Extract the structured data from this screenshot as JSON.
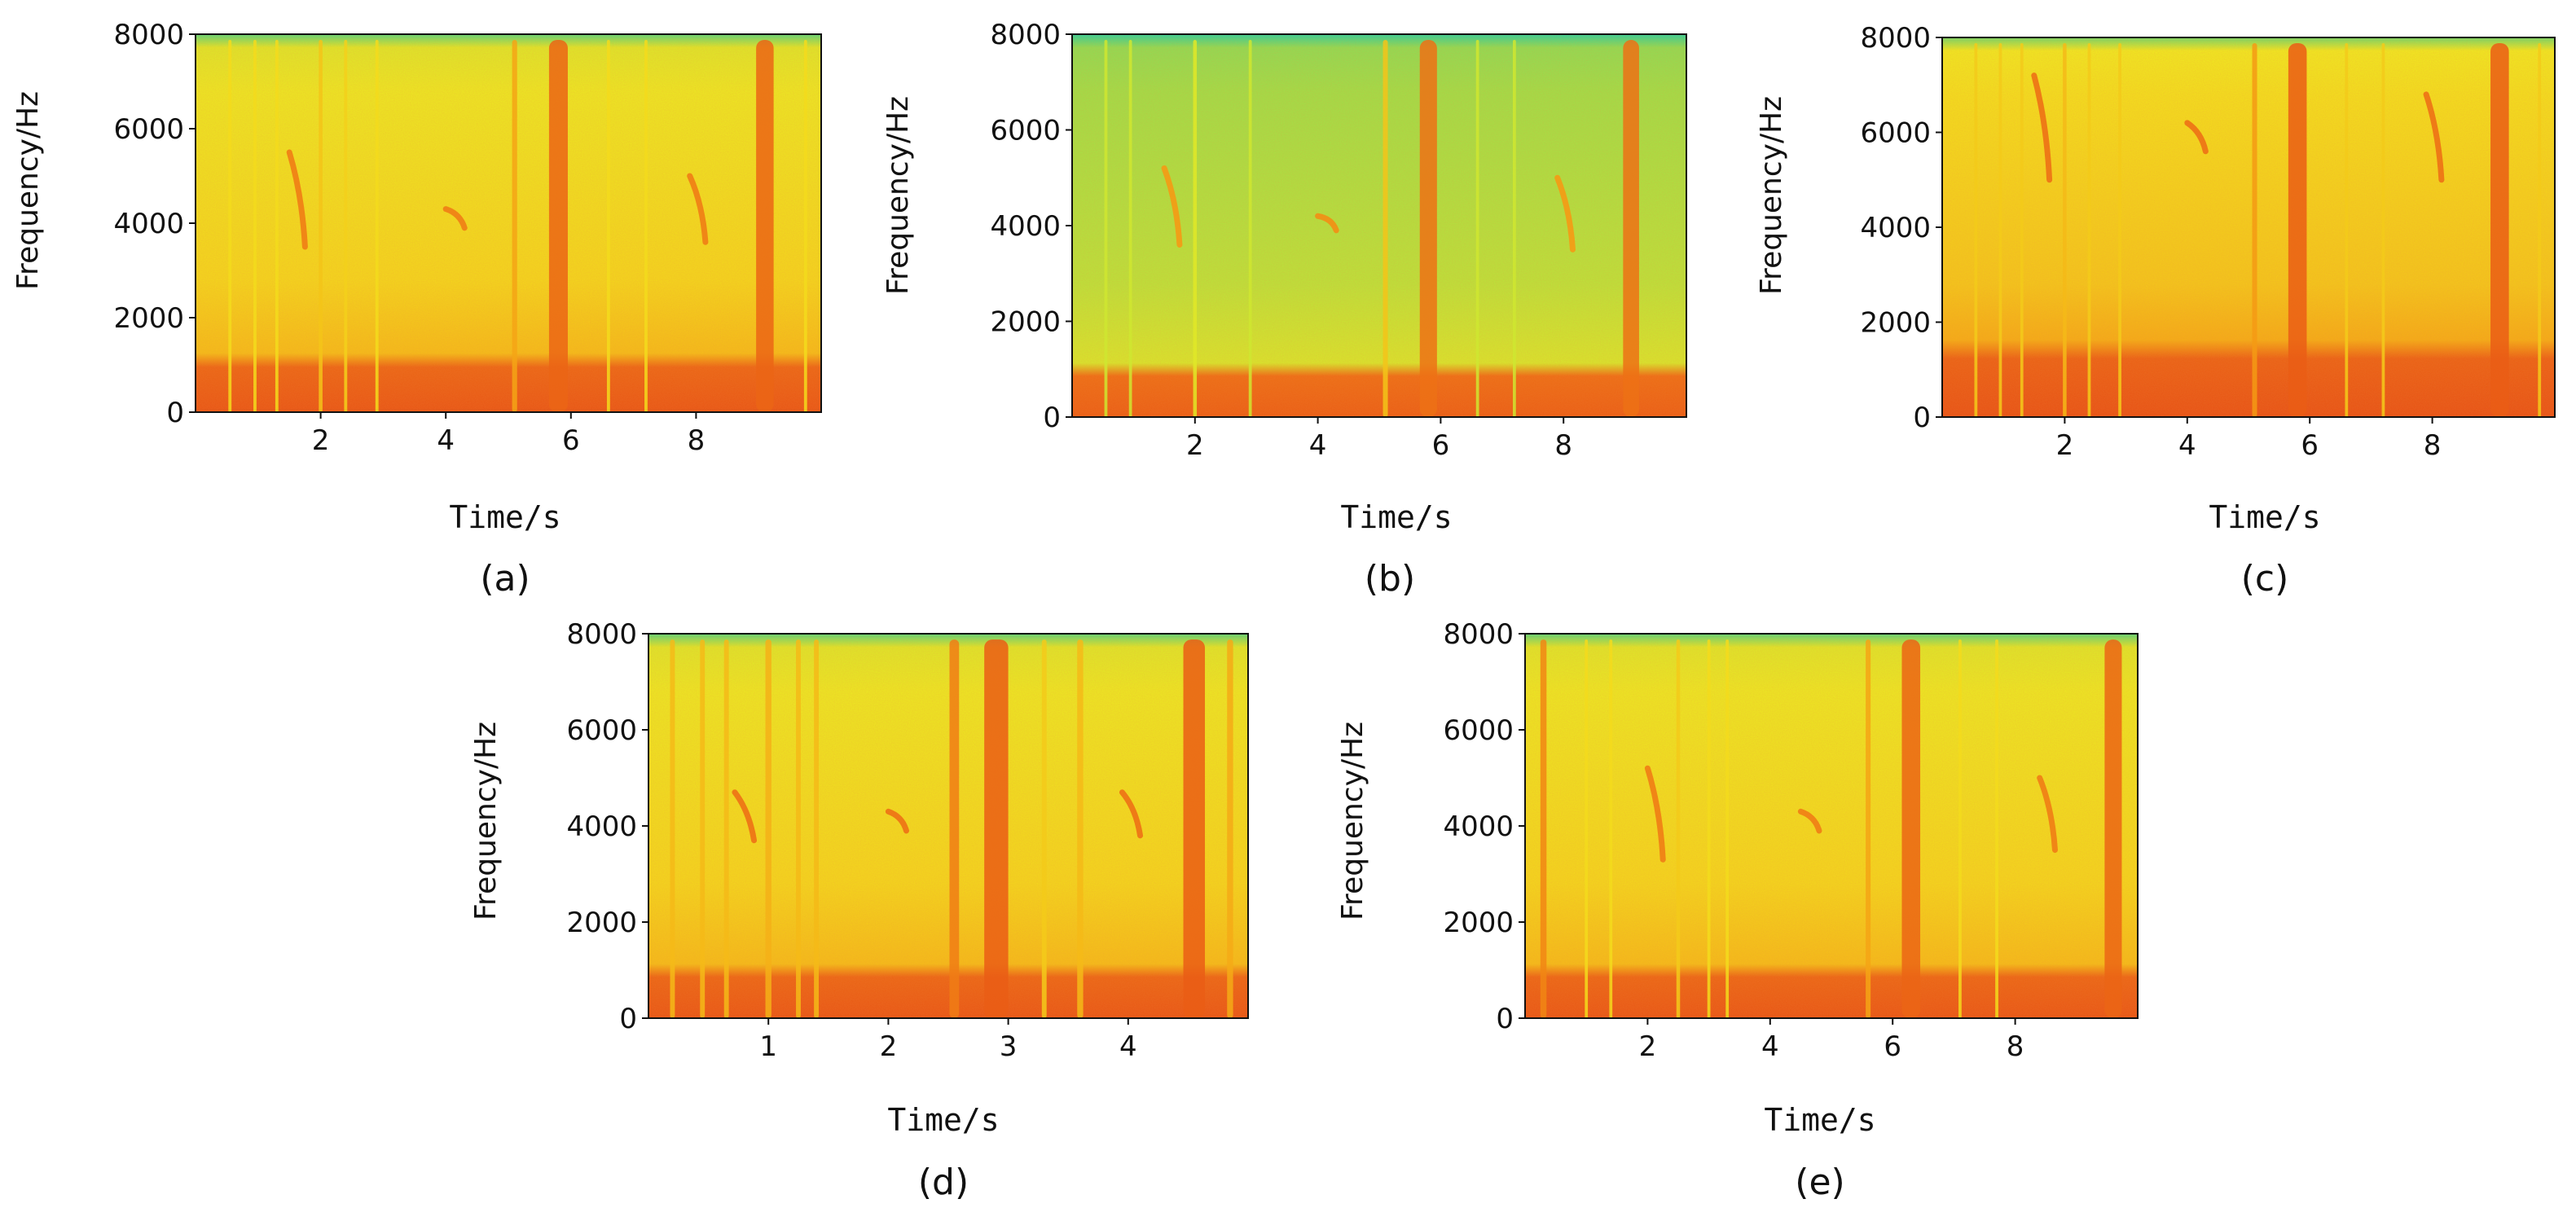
{
  "chart_data": [
    {
      "type": "heatmap",
      "subtype": "spectrogram",
      "panel_label": "(a)",
      "xlabel": "Time/s",
      "ylabel": "Frequency/Hz",
      "xlim": [
        0,
        10
      ],
      "ylim": [
        0,
        8000
      ],
      "xticks": [
        2,
        4,
        6,
        8
      ],
      "yticks": [
        0,
        2000,
        4000,
        6000,
        8000
      ],
      "colormap": [
        "#2ad39e",
        "#9be04a",
        "#f2ea1e",
        "#f59a14",
        "#e23416"
      ],
      "background_intensity": 0.5,
      "low_band": {
        "fmax": 1000,
        "intensity": 0.92
      },
      "broadband_events": [
        {
          "t": 0.55,
          "width": 0.05,
          "intensity": 0.55
        },
        {
          "t": 0.95,
          "width": 0.05,
          "intensity": 0.55
        },
        {
          "t": 1.3,
          "width": 0.05,
          "intensity": 0.55
        },
        {
          "t": 2.0,
          "width": 0.06,
          "intensity": 0.62
        },
        {
          "t": 2.4,
          "width": 0.05,
          "intensity": 0.58
        },
        {
          "t": 2.9,
          "width": 0.05,
          "intensity": 0.55
        },
        {
          "t": 5.1,
          "width": 0.08,
          "intensity": 0.72
        },
        {
          "t": 5.8,
          "width": 0.3,
          "intensity": 0.88
        },
        {
          "t": 6.6,
          "width": 0.05,
          "intensity": 0.55
        },
        {
          "t": 7.2,
          "width": 0.05,
          "intensity": 0.55
        },
        {
          "t": 9.1,
          "width": 0.28,
          "intensity": 0.88
        },
        {
          "t": 9.75,
          "width": 0.05,
          "intensity": 0.55
        }
      ],
      "chirps": [
        {
          "t0": 1.5,
          "t1": 1.75,
          "f0": 5500,
          "f1": 3500,
          "intensity": 0.82
        },
        {
          "t0": 4.0,
          "t1": 4.3,
          "f0": 4300,
          "f1": 3900,
          "intensity": 0.82
        },
        {
          "t0": 7.9,
          "t1": 8.15,
          "f0": 5000,
          "f1": 3600,
          "intensity": 0.82
        }
      ]
    },
    {
      "type": "heatmap",
      "subtype": "spectrogram",
      "panel_label": "(b)",
      "xlabel": "Time/s",
      "ylabel": "Frequency/Hz",
      "xlim": [
        0,
        10
      ],
      "ylim": [
        0,
        8000
      ],
      "xticks": [
        2,
        4,
        6,
        8
      ],
      "yticks": [
        0,
        2000,
        4000,
        6000,
        8000
      ],
      "colormap": [
        "#2ad39e",
        "#9be04a",
        "#f2ea1e",
        "#f59a14",
        "#e23416"
      ],
      "background_intensity": 0.28,
      "low_band": {
        "fmax": 900,
        "intensity": 0.9
      },
      "broadband_events": [
        {
          "t": 0.55,
          "width": 0.05,
          "intensity": 0.4
        },
        {
          "t": 0.95,
          "width": 0.05,
          "intensity": 0.4
        },
        {
          "t": 2.0,
          "width": 0.06,
          "intensity": 0.45
        },
        {
          "t": 2.9,
          "width": 0.05,
          "intensity": 0.4
        },
        {
          "t": 5.1,
          "width": 0.08,
          "intensity": 0.62
        },
        {
          "t": 5.8,
          "width": 0.28,
          "intensity": 0.85
        },
        {
          "t": 6.6,
          "width": 0.05,
          "intensity": 0.4
        },
        {
          "t": 7.2,
          "width": 0.05,
          "intensity": 0.4
        },
        {
          "t": 9.1,
          "width": 0.26,
          "intensity": 0.85
        }
      ],
      "chirps": [
        {
          "t0": 1.5,
          "t1": 1.75,
          "f0": 5200,
          "f1": 3600,
          "intensity": 0.75
        },
        {
          "t0": 4.0,
          "t1": 4.3,
          "f0": 4200,
          "f1": 3900,
          "intensity": 0.78
        },
        {
          "t0": 7.9,
          "t1": 8.15,
          "f0": 5000,
          "f1": 3500,
          "intensity": 0.75
        }
      ]
    },
    {
      "type": "heatmap",
      "subtype": "spectrogram",
      "panel_label": "(c)",
      "xlabel": "Time/s",
      "ylabel": "Frequency/Hz",
      "xlim": [
        0,
        10
      ],
      "ylim": [
        0,
        8000
      ],
      "xticks": [
        2,
        4,
        6,
        8
      ],
      "yticks": [
        0,
        2000,
        4000,
        6000,
        8000
      ],
      "colormap": [
        "#2ad39e",
        "#9be04a",
        "#f2ea1e",
        "#f59a14",
        "#e23416"
      ],
      "background_intensity": 0.55,
      "low_band": {
        "fmax": 1300,
        "intensity": 0.93
      },
      "broadband_events": [
        {
          "t": 0.55,
          "width": 0.05,
          "intensity": 0.6
        },
        {
          "t": 0.95,
          "width": 0.05,
          "intensity": 0.6
        },
        {
          "t": 1.3,
          "width": 0.05,
          "intensity": 0.6
        },
        {
          "t": 2.0,
          "width": 0.06,
          "intensity": 0.65
        },
        {
          "t": 2.4,
          "width": 0.05,
          "intensity": 0.6
        },
        {
          "t": 2.9,
          "width": 0.05,
          "intensity": 0.6
        },
        {
          "t": 5.1,
          "width": 0.08,
          "intensity": 0.75
        },
        {
          "t": 5.8,
          "width": 0.3,
          "intensity": 0.9
        },
        {
          "t": 6.6,
          "width": 0.05,
          "intensity": 0.6
        },
        {
          "t": 7.2,
          "width": 0.05,
          "intensity": 0.6
        },
        {
          "t": 9.1,
          "width": 0.3,
          "intensity": 0.9
        },
        {
          "t": 9.75,
          "width": 0.05,
          "intensity": 0.6
        }
      ],
      "chirps": [
        {
          "t0": 1.5,
          "t1": 1.75,
          "f0": 7200,
          "f1": 5000,
          "intensity": 0.85
        },
        {
          "t0": 4.0,
          "t1": 4.3,
          "f0": 6200,
          "f1": 5600,
          "intensity": 0.85
        },
        {
          "t0": 7.9,
          "t1": 8.15,
          "f0": 6800,
          "f1": 5000,
          "intensity": 0.85
        }
      ]
    },
    {
      "type": "heatmap",
      "subtype": "spectrogram",
      "panel_label": "(d)",
      "xlabel": "Time/s",
      "ylabel": "Frequency/Hz",
      "xlim": [
        0,
        5
      ],
      "ylim": [
        0,
        8000
      ],
      "xticks": [
        1,
        2,
        3,
        4
      ],
      "yticks": [
        0,
        2000,
        4000,
        6000,
        8000
      ],
      "colormap": [
        "#2ad39e",
        "#9be04a",
        "#f2ea1e",
        "#f59a14",
        "#e23416"
      ],
      "background_intensity": 0.5,
      "low_band": {
        "fmax": 900,
        "intensity": 0.92
      },
      "broadband_events": [
        {
          "t": 0.2,
          "width": 0.04,
          "intensity": 0.65
        },
        {
          "t": 0.45,
          "width": 0.04,
          "intensity": 0.65
        },
        {
          "t": 0.65,
          "width": 0.04,
          "intensity": 0.65
        },
        {
          "t": 1.0,
          "width": 0.05,
          "intensity": 0.68
        },
        {
          "t": 1.25,
          "width": 0.04,
          "intensity": 0.65
        },
        {
          "t": 1.4,
          "width": 0.04,
          "intensity": 0.65
        },
        {
          "t": 2.55,
          "width": 0.08,
          "intensity": 0.82
        },
        {
          "t": 2.9,
          "width": 0.2,
          "intensity": 0.9
        },
        {
          "t": 3.3,
          "width": 0.04,
          "intensity": 0.6
        },
        {
          "t": 3.6,
          "width": 0.05,
          "intensity": 0.65
        },
        {
          "t": 4.55,
          "width": 0.18,
          "intensity": 0.9
        },
        {
          "t": 4.85,
          "width": 0.05,
          "intensity": 0.7
        }
      ],
      "chirps": [
        {
          "t0": 0.72,
          "t1": 0.88,
          "f0": 4700,
          "f1": 3700,
          "intensity": 0.85
        },
        {
          "t0": 2.0,
          "t1": 2.15,
          "f0": 4300,
          "f1": 3900,
          "intensity": 0.85
        },
        {
          "t0": 3.95,
          "t1": 4.1,
          "f0": 4700,
          "f1": 3800,
          "intensity": 0.85
        }
      ]
    },
    {
      "type": "heatmap",
      "subtype": "spectrogram",
      "panel_label": "(e)",
      "xlabel": "Time/s",
      "ylabel": "Frequency/Hz",
      "xlim": [
        0,
        10
      ],
      "ylim": [
        0,
        8000
      ],
      "xticks": [
        2,
        4,
        6,
        8
      ],
      "yticks": [
        0,
        2000,
        4000,
        6000,
        8000
      ],
      "colormap": [
        "#2ad39e",
        "#9be04a",
        "#f2ea1e",
        "#f59a14",
        "#e23416"
      ],
      "background_intensity": 0.5,
      "low_band": {
        "fmax": 900,
        "intensity": 0.92
      },
      "broadband_events": [
        {
          "t": 0.3,
          "width": 0.1,
          "intensity": 0.8
        },
        {
          "t": 1.0,
          "width": 0.05,
          "intensity": 0.55
        },
        {
          "t": 1.4,
          "width": 0.05,
          "intensity": 0.55
        },
        {
          "t": 2.5,
          "width": 0.06,
          "intensity": 0.6
        },
        {
          "t": 3.0,
          "width": 0.05,
          "intensity": 0.55
        },
        {
          "t": 3.3,
          "width": 0.05,
          "intensity": 0.55
        },
        {
          "t": 5.6,
          "width": 0.08,
          "intensity": 0.72
        },
        {
          "t": 6.3,
          "width": 0.3,
          "intensity": 0.88
        },
        {
          "t": 7.1,
          "width": 0.05,
          "intensity": 0.55
        },
        {
          "t": 7.7,
          "width": 0.05,
          "intensity": 0.55
        },
        {
          "t": 9.6,
          "width": 0.28,
          "intensity": 0.88
        }
      ],
      "chirps": [
        {
          "t0": 2.0,
          "t1": 2.25,
          "f0": 5200,
          "f1": 3300,
          "intensity": 0.82
        },
        {
          "t0": 4.5,
          "t1": 4.8,
          "f0": 4300,
          "f1": 3900,
          "intensity": 0.82
        },
        {
          "t0": 8.4,
          "t1": 8.65,
          "f0": 5000,
          "f1": 3500,
          "intensity": 0.82
        }
      ]
    }
  ]
}
